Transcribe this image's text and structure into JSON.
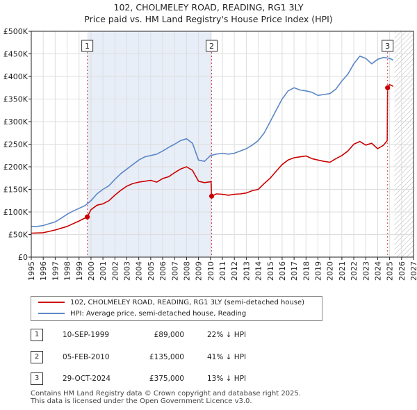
{
  "title_line1": "102, CHOLMELEY ROAD, READING, RG1 3LY",
  "title_line2": "Price paid vs. HM Land Registry's House Price Index (HPI)",
  "colors": {
    "price": "#cc0000",
    "hpi": "#5b87c7",
    "shade": "#e8eef8",
    "grid": "#dddddd"
  },
  "legend": {
    "price_label": "102, CHOLMELEY ROAD, READING, RG1 3LY (semi-detached house)",
    "hpi_label": "HPI: Average price, semi-detached house, Reading"
  },
  "sales": [
    {
      "marker": "1",
      "date": "10-SEP-1999",
      "price": "£89,000",
      "diff": "22% ↓ HPI"
    },
    {
      "marker": "2",
      "date": "05-FEB-2010",
      "price": "£135,000",
      "diff": "41% ↓ HPI"
    },
    {
      "marker": "3",
      "date": "29-OCT-2024",
      "price": "£375,000",
      "diff": "13% ↓ HPI"
    }
  ],
  "footer_line1": "Contains HM Land Registry data © Crown copyright and database right 2025.",
  "footer_line2": "This data is licensed under the Open Government Licence v3.0.",
  "chart_data": {
    "type": "line",
    "title": "102, CHOLMELEY ROAD, READING, RG1 3LY — Price paid vs. HM Land Registry's House Price Index (HPI)",
    "xlabel": "",
    "ylabel": "",
    "xlim": [
      1995,
      2027
    ],
    "ylim": [
      0,
      500000
    ],
    "y_ticks": [
      0,
      50000,
      100000,
      150000,
      200000,
      250000,
      300000,
      350000,
      400000,
      450000,
      500000
    ],
    "y_tick_labels": [
      "£0",
      "£50K",
      "£100K",
      "£150K",
      "£200K",
      "£250K",
      "£300K",
      "£350K",
      "£400K",
      "£450K",
      "£500K"
    ],
    "x_ticks": [
      1995,
      1996,
      1997,
      1998,
      1999,
      2000,
      2001,
      2002,
      2003,
      2004,
      2005,
      2006,
      2007,
      2008,
      2009,
      2010,
      2011,
      2012,
      2013,
      2014,
      2015,
      2016,
      2017,
      2018,
      2019,
      2020,
      2021,
      2022,
      2023,
      2024,
      2025,
      2026,
      2027
    ],
    "x_tick_labels": [
      "1995",
      "1996",
      "1997",
      "1998",
      "1999",
      "2000",
      "2001",
      "2002",
      "2003",
      "2004",
      "2005",
      "2006",
      "2007",
      "2008",
      "2009",
      "2010",
      "2011",
      "2012",
      "2013",
      "2014",
      "2015",
      "2016",
      "2017",
      "2018",
      "2019",
      "2020",
      "2021",
      "2022",
      "2023",
      "2024",
      "2025",
      "2026",
      "2027"
    ],
    "shaded_periods": [
      [
        1999.69,
        2010.1
      ]
    ],
    "forecast_hatch_from": 2025.4,
    "sale_markers": [
      {
        "label": "1",
        "x": 1999.69,
        "y": 89000
      },
      {
        "label": "2",
        "x": 2010.1,
        "y": 135000
      },
      {
        "label": "3",
        "x": 2024.83,
        "y": 375000
      }
    ],
    "series": [
      {
        "name": "102, CHOLMELEY ROAD, READING, RG1 3LY (semi-detached house)",
        "x": [
          1995.0,
          1996.0,
          1997.0,
          1998.0,
          1999.0,
          1999.69,
          2000.0,
          2000.5,
          2001.0,
          2001.5,
          2002.0,
          2002.5,
          2003.0,
          2003.5,
          2004.0,
          2004.5,
          2005.0,
          2005.5,
          2006.0,
          2006.5,
          2007.0,
          2007.5,
          2008.0,
          2008.5,
          2009.0,
          2009.5,
          2010.05,
          2010.1,
          2010.5,
          2011.0,
          2011.5,
          2012.0,
          2012.5,
          2013.0,
          2013.5,
          2014.0,
          2014.5,
          2015.0,
          2015.5,
          2016.0,
          2016.5,
          2017.0,
          2017.5,
          2018.0,
          2018.5,
          2019.0,
          2019.5,
          2020.0,
          2020.5,
          2021.0,
          2021.5,
          2022.0,
          2022.5,
          2023.0,
          2023.5,
          2024.0,
          2024.5,
          2024.8,
          2024.83,
          2025.0,
          2025.3
        ],
        "values": [
          53000,
          54000,
          60000,
          68000,
          80000,
          89000,
          105000,
          115000,
          118000,
          125000,
          137000,
          148000,
          157000,
          163000,
          166000,
          168000,
          170000,
          166000,
          174000,
          178000,
          187000,
          195000,
          200000,
          192000,
          168000,
          165000,
          167000,
          135000,
          140000,
          139000,
          137000,
          139000,
          140000,
          142000,
          147000,
          150000,
          163000,
          175000,
          190000,
          205000,
          215000,
          220000,
          222000,
          224000,
          218000,
          215000,
          212000,
          210000,
          218000,
          225000,
          235000,
          250000,
          256000,
          248000,
          252000,
          240000,
          248000,
          258000,
          375000,
          382000,
          378000
        ]
      },
      {
        "name": "HPI: Average price, semi-detached house, Reading",
        "x": [
          1995.0,
          1995.5,
          1996.0,
          1996.5,
          1997.0,
          1997.5,
          1998.0,
          1998.5,
          1999.0,
          1999.5,
          2000.0,
          2000.5,
          2001.0,
          2001.5,
          2002.0,
          2002.5,
          2003.0,
          2003.5,
          2004.0,
          2004.5,
          2005.0,
          2005.5,
          2006.0,
          2006.5,
          2007.0,
          2007.5,
          2008.0,
          2008.5,
          2009.0,
          2009.5,
          2010.0,
          2010.5,
          2011.0,
          2011.5,
          2012.0,
          2012.5,
          2013.0,
          2013.5,
          2014.0,
          2014.5,
          2015.0,
          2015.5,
          2016.0,
          2016.5,
          2017.0,
          2017.5,
          2018.0,
          2018.5,
          2019.0,
          2019.5,
          2020.0,
          2020.5,
          2021.0,
          2021.5,
          2022.0,
          2022.5,
          2023.0,
          2023.5,
          2024.0,
          2024.5,
          2025.0,
          2025.3
        ],
        "values": [
          68000,
          68000,
          70000,
          74000,
          78000,
          86000,
          95000,
          102000,
          108000,
          114000,
          125000,
          140000,
          150000,
          158000,
          172000,
          185000,
          195000,
          205000,
          215000,
          222000,
          225000,
          228000,
          235000,
          243000,
          250000,
          258000,
          262000,
          252000,
          215000,
          212000,
          225000,
          228000,
          230000,
          228000,
          230000,
          235000,
          240000,
          248000,
          258000,
          275000,
          300000,
          325000,
          350000,
          368000,
          375000,
          370000,
          368000,
          365000,
          358000,
          360000,
          362000,
          372000,
          390000,
          405000,
          428000,
          445000,
          440000,
          428000,
          438000,
          442000,
          440000,
          436000
        ]
      }
    ]
  }
}
